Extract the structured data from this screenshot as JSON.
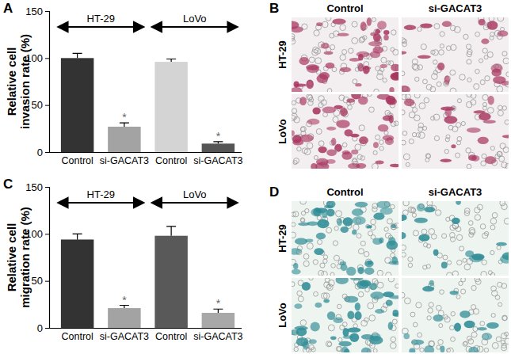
{
  "chart_data": [
    {
      "type": "bar",
      "title": "A",
      "y_label": "Relative cell invasion rate (%)",
      "categories": [
        "Control",
        "si-GACAT3",
        "Control",
        "si-GACAT3"
      ],
      "values": [
        100,
        27,
        96,
        9
      ],
      "errors": [
        5,
        4,
        3,
        2
      ],
      "colors": [
        "#333333",
        "#a3a3a3",
        "#d4d4d4",
        "#555555"
      ],
      "groups": [
        "HT-29",
        "LoVo"
      ],
      "significance": [
        null,
        "*",
        null,
        "*"
      ],
      "ylim": [
        0,
        150
      ],
      "yticks": [
        0,
        50,
        100,
        150
      ]
    },
    {
      "type": "bar",
      "title": "C",
      "y_label": "Relative cell migration rate (%)",
      "categories": [
        "Control",
        "si-GACAT3",
        "Control",
        "si-GACAT3"
      ],
      "values": [
        94,
        21,
        98,
        16
      ],
      "errors": [
        6,
        3,
        10,
        4
      ],
      "colors": [
        "#333333",
        "#a3a3a3",
        "#595959",
        "#a8a8a8"
      ],
      "groups": [
        "HT-29",
        "LoVo"
      ],
      "significance": [
        null,
        "*",
        null,
        "*"
      ],
      "ylim": [
        0,
        150
      ],
      "yticks": [
        0,
        50,
        100,
        150
      ]
    }
  ],
  "image_panels": [
    {
      "title": "B",
      "columns": [
        "Control",
        "si-GACAT3"
      ],
      "rows": [
        "HT-29",
        "LoVo"
      ]
    },
    {
      "title": "D",
      "columns": [
        "Control",
        "si-GACAT3"
      ],
      "rows": [
        "HT-29",
        "LoVo"
      ]
    }
  ]
}
